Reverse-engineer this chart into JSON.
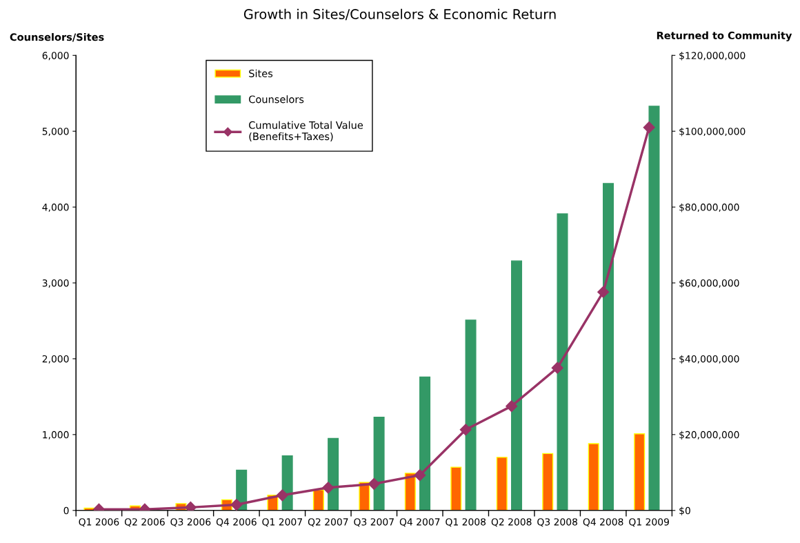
{
  "chart_data": {
    "type": "bar",
    "title": "Growth in Sites/Counselors & Economic Return",
    "ylabel": "Counselors/Sites",
    "y2label": "Returned to Community",
    "categories": [
      "Q1 2006",
      "Q2 2006",
      "Q3 2006",
      "Q4 2006",
      "Q1 2007",
      "Q2 2007",
      "Q3 2007",
      "Q4 2007",
      "Q1 2008",
      "Q2 2008",
      "Q3 2008",
      "Q4 2008",
      "Q1 2009"
    ],
    "series": [
      {
        "name": "Sites",
        "color": "#ff6600",
        "values": [
          30,
          60,
          90,
          140,
          200,
          270,
          370,
          490,
          570,
          700,
          750,
          880,
          1010
        ]
      },
      {
        "name": "Counselors",
        "color": "#339966",
        "values": [
          0,
          0,
          0,
          530,
          720,
          950,
          1230,
          1760,
          2510,
          3290,
          3910,
          4310,
          5330
        ]
      },
      {
        "name": "Cumulative Total Value\n(Benefits+Taxes)",
        "type": "line",
        "axis": "y2",
        "color": "#993366",
        "values": [
          300000,
          300000,
          800000,
          1500000,
          4000000,
          6000000,
          7000000,
          9300000,
          21300000,
          27500000,
          37600000,
          57600000,
          101000000
        ]
      }
    ],
    "ylim": [
      0,
      6000
    ],
    "yticks": [
      {
        "value": 0,
        "label": "0"
      },
      {
        "value": 1000,
        "label": "1,000"
      },
      {
        "value": 2000,
        "label": "2,000"
      },
      {
        "value": 3000,
        "label": "3,000"
      },
      {
        "value": 4000,
        "label": "4,000"
      },
      {
        "value": 5000,
        "label": "5,000"
      },
      {
        "value": 6000,
        "label": "6,000"
      }
    ],
    "y2lim": [
      0,
      120000000
    ],
    "y2ticks": [
      {
        "value": 0,
        "label": "$0"
      },
      {
        "value": 20000000,
        "label": "$20,000,000"
      },
      {
        "value": 40000000,
        "label": "$40,000,000"
      },
      {
        "value": 60000000,
        "label": "$60,000,000"
      },
      {
        "value": 80000000,
        "label": "$80,000,000"
      },
      {
        "value": 100000000,
        "label": "$100,000,000"
      },
      {
        "value": 120000000,
        "label": "$120,000,000"
      }
    ],
    "legend": "top left",
    "marker": "diamond",
    "grid": false
  }
}
